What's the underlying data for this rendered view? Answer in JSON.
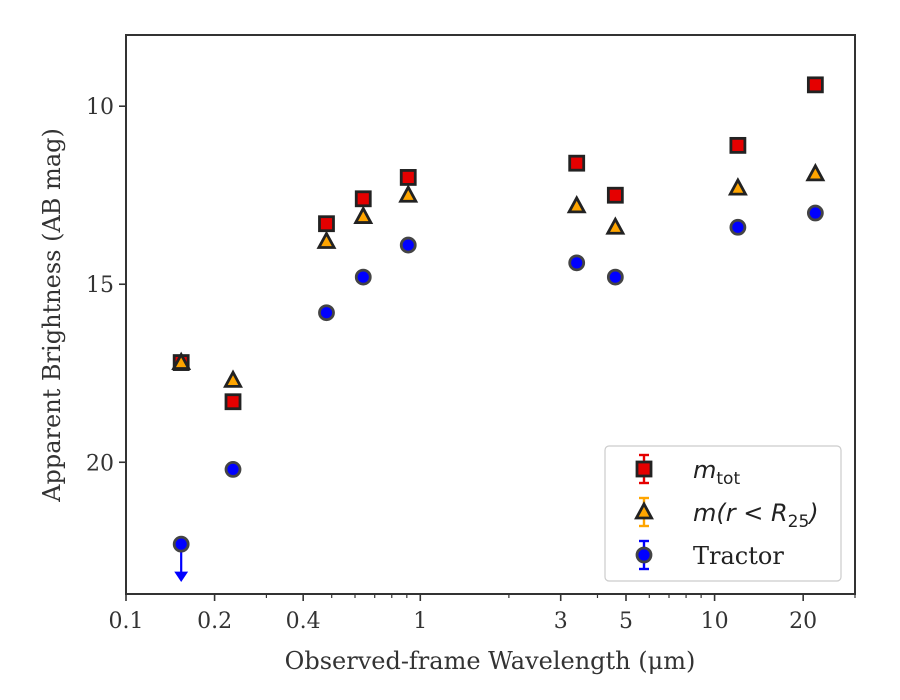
{
  "chart_data": {
    "type": "scatter",
    "xlabel": "Observed-frame Wavelength (μm)",
    "ylabel": "Apparent Brightness (AB mag)",
    "xscale": "log",
    "xlim": [
      0.1,
      30
    ],
    "ylim": [
      23.7,
      8.0
    ],
    "y_inverted": true,
    "x_ticks": [
      0.1,
      0.2,
      0.4,
      1,
      3,
      5,
      10,
      20
    ],
    "x_tick_labels": [
      "0.1",
      "0.2",
      "0.4",
      "1",
      "3",
      "5",
      "10",
      "20"
    ],
    "y_ticks": [
      10,
      15,
      20
    ],
    "y_tick_labels": [
      "10",
      "15",
      "20"
    ],
    "grid": false,
    "legend_position": "lower-right",
    "series": [
      {
        "name": "m_tot",
        "label_main": "m",
        "label_sub": "tot",
        "marker": "square",
        "color": "#e50000",
        "x": [
          0.154,
          0.231,
          0.48,
          0.64,
          0.91,
          3.4,
          4.6,
          12.0,
          22.0
        ],
        "y": [
          17.2,
          18.3,
          13.3,
          12.6,
          12.0,
          11.6,
          12.5,
          11.1,
          9.4
        ]
      },
      {
        "name": "m(r < R_25)",
        "label_main": "m(r < R",
        "label_sub": "25",
        "label_tail": ")",
        "marker": "triangle",
        "color": "#ffa500",
        "x": [
          0.154,
          0.231,
          0.48,
          0.64,
          0.91,
          3.4,
          4.6,
          12.0,
          22.0
        ],
        "y": [
          17.2,
          17.7,
          13.8,
          13.1,
          12.5,
          12.8,
          13.4,
          12.3,
          11.9
        ]
      },
      {
        "name": "Tractor",
        "marker": "circle",
        "color": "#0000ff",
        "x": [
          0.154,
          0.231,
          0.48,
          0.64,
          0.91,
          3.4,
          4.6,
          12.0,
          22.0
        ],
        "y": [
          22.3,
          20.2,
          15.8,
          14.8,
          13.9,
          14.4,
          14.8,
          13.4,
          13.0
        ],
        "upper_limit_index": 0
      }
    ]
  }
}
